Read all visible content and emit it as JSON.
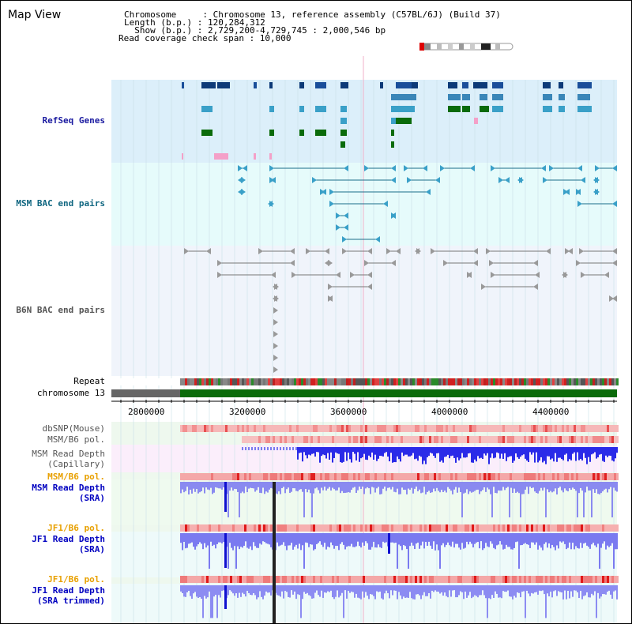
{
  "page": {
    "title": "Map View",
    "info": {
      "chromosome": "Chromosome     : Chromosome 13, reference assembly (C57BL/6J) (Build 37)",
      "length": "Length (b.p.) : 120,284,312",
      "show": "  Show (b.p.) : 2,729,200-4,729,745 : 2,000,546 bp",
      "coverage": "Read coverage check span : 10,000"
    }
  },
  "tracks": {
    "refseq": "RefSeq Genes",
    "msm_bac": "MSM BAC end pairs",
    "b6n_bac": "B6N BAC end pairs",
    "repeat": "Repeat",
    "chromosome": "chromosome 13",
    "dbsnp": "dbSNP(Mouse)",
    "msm_b6_pol_1": "MSM/B6 pol.",
    "msm_depth_cap_1": "MSM Read Depth",
    "msm_depth_cap_2": "(Capillary)",
    "msm_b6_pol_2": "MSM/B6 pol.",
    "msm_depth_sra_1": "MSM Read Depth",
    "msm_depth_sra_2": "(SRA)",
    "jf1_b6_pol_1": "JF1/B6 pol.",
    "jf1_depth_sra_1": "JF1 Read Depth",
    "jf1_depth_sra_2": "(SRA)",
    "jf1_b6_pol_2": "JF1/B6 pol.",
    "jf1_depth_trim_1": "JF1 Read Depth",
    "jf1_depth_trim_2": "(SRA trimmed)"
  },
  "axis": {
    "ticks": [
      "2800000",
      "3200000",
      "3600000",
      "4000000",
      "4400000"
    ]
  },
  "colors": {
    "refseq_bg": "#dceffa",
    "msm_bg": "#e6fbfb",
    "b6n_bg": "#f0f4fb",
    "refseq_label": "#1a1aa0",
    "msm_label": "#0f6680",
    "b6n_label": "#555555",
    "pol_label": "#e8a000",
    "depth_label": "#0000c0",
    "chrom_green": "#0a6b0a",
    "depth_blue": "#2222e0"
  }
}
